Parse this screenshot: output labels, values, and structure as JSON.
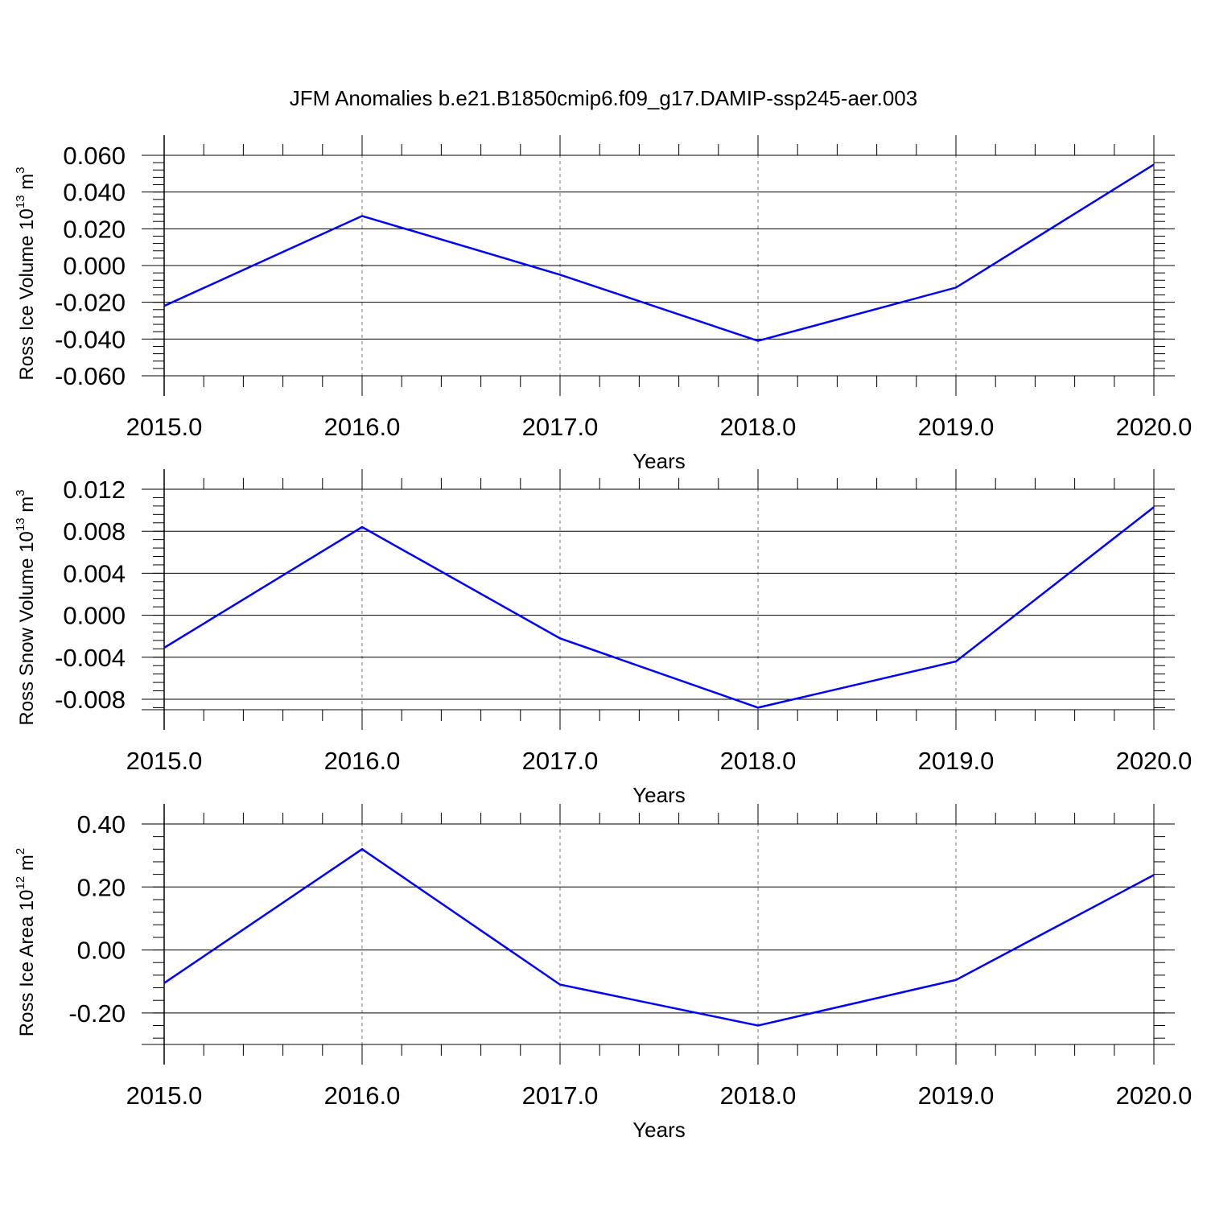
{
  "title": "JFM Anomalies b.e21.B1850cmip6.f09_g17.DAMIP-ssp245-aer.003",
  "chart_data": [
    {
      "type": "line",
      "ylabel": {
        "text": "Ross Ice Volume 10",
        "sup": "13",
        "unit": " m",
        "unit_sup": "3"
      },
      "xlabel": "Years",
      "x": [
        2015,
        2016,
        2017,
        2018,
        2019,
        2020
      ],
      "x_tick_labels": [
        "2015.0",
        "2016.0",
        "2017.0",
        "2018.0",
        "2019.0",
        "2020.0"
      ],
      "xlim": [
        2015,
        2020
      ],
      "series": [
        {
          "values": [
            -0.022,
            0.027,
            -0.005,
            -0.041,
            -0.012,
            0.055
          ]
        }
      ],
      "ylim": [
        -0.06,
        0.06
      ],
      "y_ticks": [
        0.06,
        0.04,
        0.02,
        0.0,
        -0.02,
        -0.04,
        -0.06
      ],
      "y_tick_labels": [
        "0.060",
        "0.040",
        "0.020",
        "0.000",
        "-0.020",
        "-0.040",
        "-0.060"
      ],
      "y_minor_step": 0.004,
      "line_color": "#0000ff"
    },
    {
      "type": "line",
      "ylabel": {
        "text": "Ross Snow Volume 10",
        "sup": "13",
        "unit": " m",
        "unit_sup": "3"
      },
      "xlabel": "Years",
      "x": [
        2015,
        2016,
        2017,
        2018,
        2019,
        2020
      ],
      "x_tick_labels": [
        "2015.0",
        "2016.0",
        "2017.0",
        "2018.0",
        "2019.0",
        "2020.0"
      ],
      "xlim": [
        2015,
        2020
      ],
      "series": [
        {
          "values": [
            -0.0031,
            0.0084,
            -0.0022,
            -0.0088,
            -0.0044,
            0.0103
          ]
        }
      ],
      "ylim": [
        -0.009,
        0.012
      ],
      "y_ticks": [
        0.012,
        0.008,
        0.004,
        0.0,
        -0.004,
        -0.008
      ],
      "y_tick_labels": [
        "0.012",
        "0.008",
        "0.004",
        "0.000",
        "-0.004",
        "-0.008"
      ],
      "y_minor_step": 0.0008,
      "line_color": "#0000ff"
    },
    {
      "type": "line",
      "ylabel": {
        "text": "Ross Ice Area 10",
        "sup": "12",
        "unit": " m",
        "unit_sup": "2"
      },
      "xlabel": "Years",
      "x": [
        2015,
        2016,
        2017,
        2018,
        2019,
        2020
      ],
      "x_tick_labels": [
        "2015.0",
        "2016.0",
        "2017.0",
        "2018.0",
        "2019.0",
        "2020.0"
      ],
      "xlim": [
        2015,
        2020
      ],
      "series": [
        {
          "values": [
            -0.105,
            0.32,
            -0.11,
            -0.24,
            -0.095,
            0.238
          ]
        }
      ],
      "ylim": [
        -0.3,
        0.4
      ],
      "y_ticks": [
        0.4,
        0.2,
        0.0,
        -0.2
      ],
      "y_tick_labels": [
        "0.40",
        "0.20",
        "0.00",
        "-0.20"
      ],
      "y_minor_step": 0.04,
      "line_color": "#0000ff"
    }
  ]
}
